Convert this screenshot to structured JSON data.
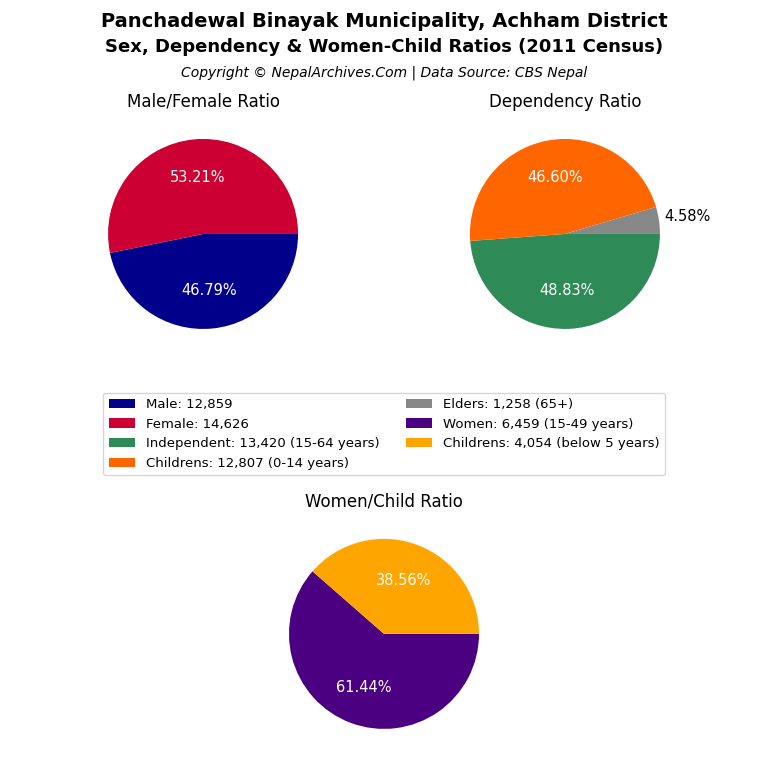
{
  "title": "Panchadewal Binayak Municipality, Achham District",
  "subtitle": "Sex, Dependency & Women-Child Ratios (2011 Census)",
  "annotations": [
    "Copyright © NepalArchives.Com | Data Source: CBS Nepal"
  ],
  "legend": "center",
  "chart_data": [
    {
      "type": "pie",
      "title": "Male/Female Ratio",
      "categories": [
        "Male: 12,859",
        "Female: 14,626"
      ],
      "values": [
        46.79,
        53.21
      ],
      "value_labels": [
        "46.79%",
        "53.21%"
      ],
      "colors": [
        "#00008B",
        "#CC0033"
      ],
      "data_labels": true
    },
    {
      "type": "pie",
      "title": "Dependency Ratio",
      "categories": [
        "Independent: 13,420 (15-64 years)",
        "Childrens: 12,807 (0-14 years)",
        "Elders: 1,258 (65+)"
      ],
      "values": [
        48.83,
        46.6,
        4.58
      ],
      "value_labels": [
        "48.83%",
        "46.60%",
        "4.58%"
      ],
      "colors": [
        "#2E8B57",
        "#FF6600",
        "#888888"
      ],
      "data_labels": true
    },
    {
      "type": "pie",
      "title": "Women/Child Ratio",
      "categories": [
        "Women: 6,459 (15-49 years)",
        "Childrens: 4,054 (below 5 years)"
      ],
      "values": [
        61.44,
        38.56
      ],
      "value_labels": [
        "61.44%",
        "38.56%"
      ],
      "colors": [
        "#4B0082",
        "#FFA500"
      ],
      "data_labels": true
    }
  ]
}
